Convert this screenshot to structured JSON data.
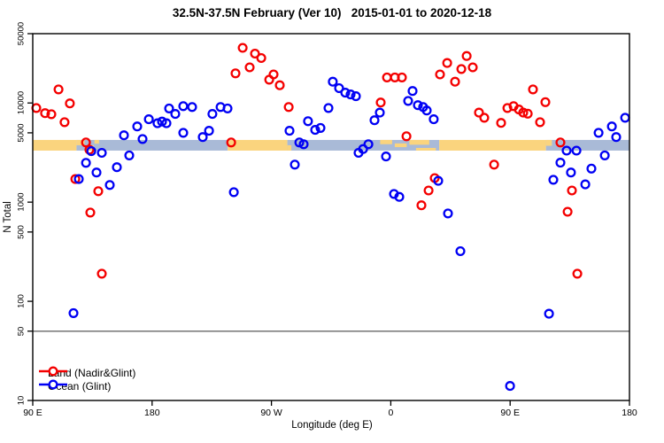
{
  "title": "32.5N-37.5N February (Ver 10)   2015-01-01 to 2020-12-18",
  "chart_data": {
    "type": "scatter",
    "title": "32.5N-37.5N February (Ver 10)   2015-01-01 to 2020-12-18",
    "xlabel": "Longitude (deg E)",
    "ylabel": "N Total",
    "y_scale": "log10",
    "y_range": [
      10,
      50000
    ],
    "x_range_deg": [
      90,
      540
    ],
    "grid": "off",
    "y_ticks": [
      {
        "value": 50000,
        "label": "50000"
      },
      {
        "value": 10000,
        "label": "10000"
      },
      {
        "value": 5000,
        "label": "5000"
      },
      {
        "value": 1000,
        "label": "1000"
      },
      {
        "value": 500,
        "label": "500"
      },
      {
        "value": 100,
        "label": "100"
      },
      {
        "value": 50,
        "label": "50"
      },
      {
        "value": 10,
        "label": "10"
      }
    ],
    "x_ticks": [
      {
        "deg": 90,
        "label": "90 E"
      },
      {
        "deg": 180,
        "label": "180"
      },
      {
        "deg": 270,
        "label": "90 W"
      },
      {
        "deg": 360,
        "label": "0"
      },
      {
        "deg": 450,
        "label": "90 E"
      },
      {
        "deg": 540,
        "label": "180"
      }
    ],
    "reference_line": {
      "value": 50,
      "color": "#7f7f7f"
    },
    "land_ocean_band": {
      "description": "land/ocean mask strip along 32.5N-37.5N",
      "value_top": 4240,
      "value_bottom": 3310,
      "land_color": "#fad47e",
      "ocean_color": "#a9bad7",
      "segments": [
        {
          "from": 90,
          "to": 123,
          "type": "land"
        },
        {
          "from": 123,
          "to": 237,
          "type": "ocean"
        },
        {
          "from": 237,
          "to": 282,
          "type": "land"
        },
        {
          "from": 282,
          "to": 396.5,
          "type": "ocean"
        },
        {
          "from": 396.5,
          "to": 477,
          "type": "land"
        },
        {
          "from": 477,
          "to": 540,
          "type": "ocean"
        }
      ],
      "patches": [
        {
          "from": 123,
          "to": 129,
          "type": "land",
          "vpos": "top",
          "frac": 0.5
        },
        {
          "from": 130,
          "to": 136,
          "type": "land",
          "vpos": "bottom",
          "frac": 0.5
        },
        {
          "from": 136.5,
          "to": 140,
          "type": "land",
          "vpos": "top",
          "frac": 0.35
        },
        {
          "from": 282,
          "to": 285,
          "type": "land",
          "vpos": "bottom",
          "frac": 0.5
        },
        {
          "from": 352,
          "to": 361,
          "type": "land",
          "vpos": "top",
          "frac": 0.4
        },
        {
          "from": 363,
          "to": 372,
          "type": "land",
          "vpos": "mid",
          "frac": 0.35
        },
        {
          "from": 374,
          "to": 389,
          "type": "land",
          "vpos": "top",
          "frac": 0.45
        },
        {
          "from": 379,
          "to": 394,
          "type": "land",
          "vpos": "bottom",
          "frac": 0.25
        },
        {
          "from": 477,
          "to": 481.5,
          "type": "land",
          "vpos": "top",
          "frac": 0.55
        }
      ]
    },
    "legend": {
      "position": "bottom-left"
    },
    "series": [
      {
        "name": "Land (Nadir&Glint)",
        "color": "#f40000",
        "marker": "open-circle",
        "points": [
          [
            109.4,
            13700
          ],
          [
            92.7,
            8900
          ],
          [
            99.3,
            7900
          ],
          [
            104.0,
            7700
          ],
          [
            118.0,
            9900
          ],
          [
            114.0,
            6400
          ],
          [
            130.1,
            4000
          ],
          [
            132.7,
            3380
          ],
          [
            122.1,
            1710
          ],
          [
            139.4,
            1290
          ],
          [
            133.4,
            785
          ],
          [
            142.1,
            190
          ],
          [
            248.3,
            36000
          ],
          [
            257.6,
            31500
          ],
          [
            262.3,
            28400
          ],
          [
            253.6,
            22900
          ],
          [
            242.9,
            19900
          ],
          [
            268.3,
            17200
          ],
          [
            271.6,
            19400
          ],
          [
            276.3,
            15100
          ],
          [
            283.0,
            9100
          ],
          [
            239.6,
            4000
          ],
          [
            357.1,
            18100
          ],
          [
            363.1,
            18100
          ],
          [
            368.4,
            18100
          ],
          [
            352.4,
            10100
          ],
          [
            371.8,
            4620
          ],
          [
            393.1,
            1750
          ],
          [
            388.5,
            1310
          ],
          [
            383.1,
            930
          ],
          [
            402.5,
            25300
          ],
          [
            417.2,
            29800
          ],
          [
            413.2,
            22000
          ],
          [
            397.1,
            19400
          ],
          [
            421.8,
            22900
          ],
          [
            408.5,
            16400
          ],
          [
            426.5,
            8000
          ],
          [
            430.5,
            7100
          ],
          [
            467.2,
            13700
          ],
          [
            476.6,
            10200
          ],
          [
            447.9,
            8900
          ],
          [
            452.6,
            9300
          ],
          [
            456.6,
            8600
          ],
          [
            459.9,
            8000
          ],
          [
            463.3,
            7800
          ],
          [
            443.2,
            6300
          ],
          [
            472.6,
            6400
          ],
          [
            487.9,
            4000
          ],
          [
            437.9,
            2390
          ],
          [
            496.6,
            1310
          ],
          [
            493.3,
            800
          ],
          [
            500.7,
            190
          ]
        ]
      },
      {
        "name": "Ocean (Glint)",
        "color": "#0000f4",
        "marker": "open-circle",
        "points": [
          [
            158.8,
            4720
          ],
          [
            168.8,
            5800
          ],
          [
            177.5,
            6850
          ],
          [
            184.1,
            6250
          ],
          [
            187.5,
            6500
          ],
          [
            190.8,
            6250
          ],
          [
            192.8,
            8800
          ],
          [
            197.5,
            7750
          ],
          [
            203.5,
            5000
          ],
          [
            172.8,
            4330
          ],
          [
            134.1,
            3270
          ],
          [
            142.1,
            3140
          ],
          [
            162.8,
            2960
          ],
          [
            130.1,
            2490
          ],
          [
            153.4,
            2250
          ],
          [
            138.1,
            1990
          ],
          [
            124.7,
            1710
          ],
          [
            148.1,
            1490
          ],
          [
            120.7,
            76
          ],
          [
            203.5,
            9300
          ],
          [
            210.2,
            9100
          ],
          [
            225.5,
            7750
          ],
          [
            231.6,
            9100
          ],
          [
            236.9,
            8800
          ],
          [
            218.2,
            4530
          ],
          [
            222.9,
            5250
          ],
          [
            283.6,
            5250
          ],
          [
            291.0,
            4000
          ],
          [
            294.3,
            3840
          ],
          [
            297.6,
            6550
          ],
          [
            303.0,
            5350
          ],
          [
            307.0,
            5600
          ],
          [
            313.0,
            8900
          ],
          [
            316.3,
            16400
          ],
          [
            287.6,
            2390
          ],
          [
            241.6,
            1260
          ],
          [
            321.0,
            14100
          ],
          [
            325.7,
            12700
          ],
          [
            329.7,
            12200
          ],
          [
            333.7,
            11700
          ],
          [
            376.4,
            13200
          ],
          [
            373.1,
            10500
          ],
          [
            380.4,
            9500
          ],
          [
            384.4,
            9100
          ],
          [
            387.1,
            8400
          ],
          [
            392.4,
            6850
          ],
          [
            351.7,
            8000
          ],
          [
            347.7,
            6700
          ],
          [
            343.1,
            3840
          ],
          [
            339.1,
            3430
          ],
          [
            335.7,
            3140
          ],
          [
            356.4,
            2890
          ],
          [
            395.8,
            1640
          ],
          [
            362.4,
            1210
          ],
          [
            366.4,
            1130
          ],
          [
            403.1,
            770
          ],
          [
            412.5,
            320
          ],
          [
            536.7,
            7100
          ],
          [
            526.7,
            5800
          ],
          [
            516.7,
            5000
          ],
          [
            530.0,
            4530
          ],
          [
            492.6,
            3310
          ],
          [
            500.0,
            3310
          ],
          [
            521.4,
            2960
          ],
          [
            487.9,
            2500
          ],
          [
            511.3,
            2180
          ],
          [
            495.9,
            1990
          ],
          [
            482.6,
            1680
          ],
          [
            506.7,
            1510
          ],
          [
            479.3,
            75
          ],
          [
            449.9,
            14
          ]
        ]
      }
    ]
  }
}
